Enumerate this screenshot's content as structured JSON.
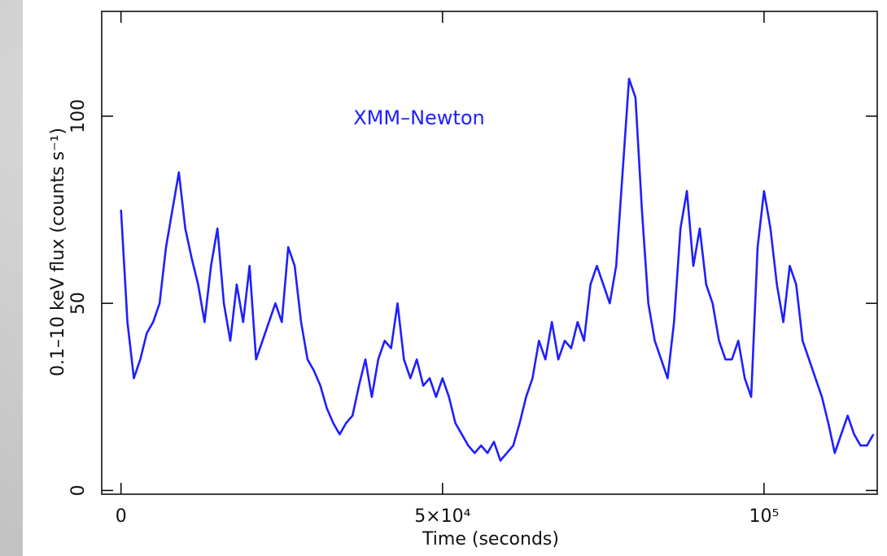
{
  "chart_data": {
    "type": "line",
    "x_label": "Time (seconds)",
    "y_label": "0.1–10 keV flux (counts s⁻¹)",
    "annotation": "XMM–Newton",
    "xlim": [
      -3000,
      117600
    ],
    "ylim": [
      -1,
      128
    ],
    "xticks": [
      0,
      {
        "value": 50000,
        "label": "5×10⁴"
      },
      {
        "value": 100000,
        "label": "10⁵"
      }
    ],
    "yticks": [
      0,
      50,
      100
    ],
    "series": [
      {
        "name": "XMM–Newton",
        "color": "#1f1fff",
        "x": [
          0,
          1000,
          2000,
          3000,
          4000,
          5000,
          6000,
          7000,
          8000,
          9000,
          10000,
          11000,
          12000,
          13000,
          14000,
          15000,
          16000,
          17000,
          18000,
          19000,
          20000,
          21000,
          22000,
          23000,
          24000,
          25000,
          26000,
          27000,
          28000,
          29000,
          30000,
          31000,
          32000,
          33000,
          34000,
          35000,
          36000,
          37000,
          38000,
          39000,
          40000,
          41000,
          42000,
          43000,
          44000,
          45000,
          46000,
          47000,
          48000,
          49000,
          50000,
          51000,
          52000,
          53000,
          54000,
          55000,
          56000,
          57000,
          58000,
          59000,
          60000,
          61000,
          62000,
          63000,
          64000,
          65000,
          66000,
          67000,
          68000,
          69000,
          70000,
          71000,
          72000,
          73000,
          74000,
          75000,
          76000,
          77000,
          78000,
          79000,
          80000,
          81000,
          82000,
          83000,
          84000,
          85000,
          86000,
          87000,
          88000,
          89000,
          90000,
          91000,
          92000,
          93000,
          94000,
          95000,
          96000,
          97000,
          98000,
          99000,
          100000,
          101000,
          102000,
          103000,
          104000,
          105000,
          106000,
          107000,
          108000,
          109000,
          110000,
          111000,
          112000,
          113000,
          114000,
          115000,
          116000,
          117000
        ],
        "values": [
          75,
          45,
          30,
          35,
          42,
          45,
          50,
          65,
          75,
          85,
          70,
          62,
          55,
          45,
          60,
          70,
          50,
          40,
          55,
          45,
          60,
          35,
          40,
          45,
          50,
          45,
          65,
          60,
          45,
          35,
          32,
          28,
          22,
          18,
          15,
          18,
          20,
          28,
          35,
          25,
          35,
          40,
          38,
          50,
          35,
          30,
          35,
          28,
          30,
          25,
          30,
          25,
          18,
          15,
          12,
          10,
          12,
          10,
          13,
          8,
          10,
          12,
          18,
          25,
          30,
          40,
          35,
          45,
          35,
          40,
          38,
          45,
          40,
          55,
          60,
          55,
          50,
          60,
          85,
          110,
          105,
          75,
          50,
          40,
          35,
          30,
          45,
          70,
          80,
          60,
          70,
          55,
          50,
          40,
          35,
          35,
          40,
          30,
          25,
          65,
          80,
          70,
          55,
          45,
          60,
          55,
          40,
          35,
          30,
          25,
          18,
          10,
          15,
          20,
          15,
          12,
          12,
          15
        ]
      }
    ]
  }
}
